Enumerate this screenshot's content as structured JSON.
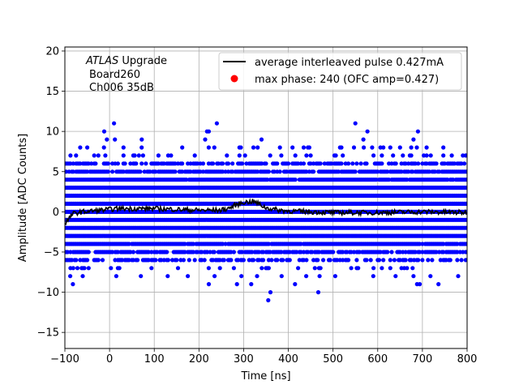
{
  "chart_data": {
    "type": "scatter",
    "xlabel": "Time [ns]",
    "ylabel": "Amplitude [ADC Counts]",
    "xlim": [
      -100,
      800
    ],
    "ylim": [
      -17,
      20.5
    ],
    "xticks": [
      -100,
      0,
      100,
      200,
      300,
      400,
      500,
      600,
      700,
      800
    ],
    "xtick_labels": [
      "−100",
      "0",
      "100",
      "200",
      "300",
      "400",
      "500",
      "600",
      "700",
      "800"
    ],
    "yticks": [
      -15,
      -10,
      -5,
      0,
      5,
      10,
      15,
      20
    ],
    "ytick_labels": [
      "−15",
      "−10",
      "−5",
      "0",
      "5",
      "10",
      "15",
      "20"
    ],
    "grid": true,
    "legend_position": "top-right",
    "annotation": {
      "italic": "ATLAS",
      "rest": " Upgrade",
      "line2": "Board260",
      "line3": "Ch006 35dB"
    },
    "legend": [
      {
        "label": "average interleaved pulse 0.427mA",
        "color": "#000000",
        "marker": "line"
      },
      {
        "label": "max phase: 240 (OFC amp=0.427)",
        "color": "#ff0000",
        "marker": "dot"
      }
    ],
    "series": [
      {
        "name": "samples",
        "color": "#0000ff",
        "sample_step_ns": 3.125,
        "levels": [
          {
            "y": -3,
            "coverage": 1.0
          },
          {
            "y": -2,
            "coverage": 1.0
          },
          {
            "y": -1,
            "coverage": 1.0
          },
          {
            "y": 0,
            "coverage": 1.0
          },
          {
            "y": 1,
            "coverage": 1.0
          },
          {
            "y": 2,
            "coverage": 1.0
          },
          {
            "y": 3,
            "coverage": 1.0
          },
          {
            "y": 4,
            "coverage": 0.97
          },
          {
            "y": -4,
            "coverage": 0.95
          },
          {
            "y": 5,
            "coverage": 0.82
          },
          {
            "y": -5,
            "coverage": 0.75
          },
          {
            "y": 6,
            "coverage": 0.6
          },
          {
            "y": -6,
            "coverage": 0.5
          },
          {
            "y": 7,
            "coverage": 0.14
          },
          {
            "y": -7,
            "coverage": 0.12
          },
          {
            "y": 8,
            "coverage": 0.1
          }
        ],
        "outliers": [
          {
            "x": -88,
            "y": -8
          },
          {
            "x": -60,
            "y": -8
          },
          {
            "x": 15,
            "y": -8
          },
          {
            "x": 70,
            "y": -8
          },
          {
            "x": 130,
            "y": -8
          },
          {
            "x": 175,
            "y": -8
          },
          {
            "x": 235,
            "y": -8
          },
          {
            "x": 295,
            "y": -8
          },
          {
            "x": 330,
            "y": -8
          },
          {
            "x": 385,
            "y": -8
          },
          {
            "x": 440,
            "y": -8
          },
          {
            "x": 470,
            "y": -8
          },
          {
            "x": 505,
            "y": -8
          },
          {
            "x": 590,
            "y": -8
          },
          {
            "x": 640,
            "y": -8
          },
          {
            "x": 680,
            "y": -8
          },
          {
            "x": 718,
            "y": -8
          },
          {
            "x": 780,
            "y": -8
          },
          {
            "x": -82,
            "y": -9
          },
          {
            "x": 222,
            "y": -9
          },
          {
            "x": 285,
            "y": -9
          },
          {
            "x": 317,
            "y": -9
          },
          {
            "x": 415,
            "y": -9
          },
          {
            "x": 688,
            "y": -9
          },
          {
            "x": 694,
            "y": -9
          },
          {
            "x": 736,
            "y": -9
          },
          {
            "x": 360,
            "y": -10
          },
          {
            "x": 467,
            "y": -10
          },
          {
            "x": 355,
            "y": -11
          },
          {
            "x": -6,
            "y": 9
          },
          {
            "x": 12,
            "y": 9
          },
          {
            "x": 72,
            "y": 9
          },
          {
            "x": 214,
            "y": 9
          },
          {
            "x": 340,
            "y": 9
          },
          {
            "x": 568,
            "y": 9
          },
          {
            "x": 680,
            "y": 9
          },
          {
            "x": -12,
            "y": 10
          },
          {
            "x": 218,
            "y": 10
          },
          {
            "x": 222,
            "y": 10
          },
          {
            "x": 577,
            "y": 10
          },
          {
            "x": 690,
            "y": 10
          },
          {
            "x": 10,
            "y": 11
          },
          {
            "x": 240,
            "y": 11
          },
          {
            "x": 550,
            "y": 11
          }
        ]
      },
      {
        "name": "average interleaved pulse 0.427mA",
        "color": "#000000",
        "type": "line",
        "x": [
          -100,
          -95,
          -90,
          -85,
          -80,
          -70,
          -60,
          -40,
          -20,
          0,
          20,
          50,
          100,
          150,
          200,
          250,
          270,
          280,
          290,
          300,
          310,
          320,
          330,
          340,
          350,
          360,
          370,
          380,
          400,
          450,
          500,
          600,
          700,
          800
        ],
        "y": [
          -1.4,
          -1.1,
          -0.8,
          -0.4,
          -0.2,
          -0.1,
          0.0,
          0.1,
          0.2,
          0.3,
          0.4,
          0.4,
          0.4,
          0.3,
          0.2,
          0.2,
          0.5,
          0.8,
          1.0,
          1.2,
          1.2,
          1.3,
          1.1,
          0.8,
          0.5,
          0.4,
          0.3,
          0.2,
          0.1,
          0.0,
          -0.1,
          -0.1,
          0.0,
          -0.1
        ]
      }
    ]
  }
}
